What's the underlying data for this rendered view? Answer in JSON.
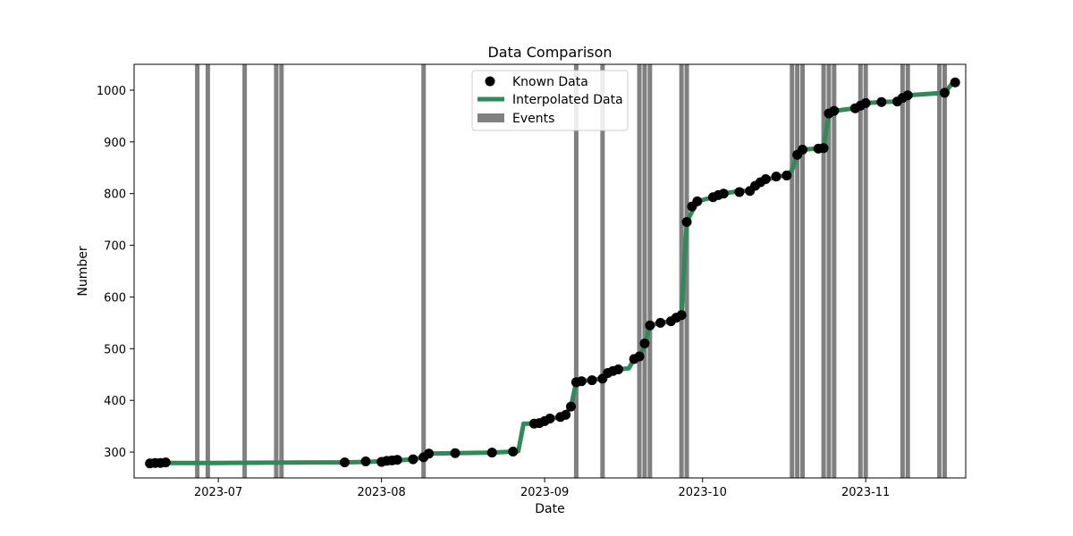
{
  "chart_data": {
    "type": "line",
    "title": "Data Comparison",
    "xlabel": "Date",
    "ylabel": "Number",
    "xlim": [
      "2023-06-15",
      "2023-11-20"
    ],
    "ylim": [
      250,
      1050
    ],
    "x_ticks": [
      "2023-07-01",
      "2023-08-01",
      "2023-09-01",
      "2023-10-01",
      "2023-11-01"
    ],
    "x_tick_labels": [
      "2023-07",
      "2023-08",
      "2023-09",
      "2023-10",
      "2023-11"
    ],
    "y_ticks": [
      300,
      400,
      500,
      600,
      700,
      800,
      900,
      1000
    ],
    "grid": false,
    "legend_position": "top-center",
    "series": [
      {
        "name": "Known Data",
        "kind": "scatter",
        "color": "#000000",
        "points": [
          [
            "2023-06-18",
            278
          ],
          [
            "2023-06-19",
            279
          ],
          [
            "2023-06-20",
            279
          ],
          [
            "2023-06-21",
            280
          ],
          [
            "2023-07-25",
            280
          ],
          [
            "2023-07-29",
            282
          ],
          [
            "2023-08-01",
            281
          ],
          [
            "2023-08-02",
            283
          ],
          [
            "2023-08-03",
            284
          ],
          [
            "2023-08-04",
            285
          ],
          [
            "2023-08-07",
            286
          ],
          [
            "2023-08-09",
            290
          ],
          [
            "2023-08-10",
            297
          ],
          [
            "2023-08-15",
            298
          ],
          [
            "2023-08-22",
            299
          ],
          [
            "2023-08-26",
            301
          ],
          [
            "2023-08-30",
            355
          ],
          [
            "2023-08-31",
            356
          ],
          [
            "2023-09-01",
            360
          ],
          [
            "2023-09-02",
            365
          ],
          [
            "2023-09-04",
            368
          ],
          [
            "2023-09-05",
            372
          ],
          [
            "2023-09-06",
            388
          ],
          [
            "2023-09-07",
            435
          ],
          [
            "2023-09-08",
            437
          ],
          [
            "2023-09-10",
            439
          ],
          [
            "2023-09-12",
            442
          ],
          [
            "2023-09-13",
            453
          ],
          [
            "2023-09-14",
            457
          ],
          [
            "2023-09-15",
            460
          ],
          [
            "2023-09-18",
            480
          ],
          [
            "2023-09-19",
            485
          ],
          [
            "2023-09-20",
            510
          ],
          [
            "2023-09-21",
            545
          ],
          [
            "2023-09-23",
            550
          ],
          [
            "2023-09-25",
            553
          ],
          [
            "2023-09-26",
            560
          ],
          [
            "2023-09-27",
            565
          ],
          [
            "2023-09-28",
            745
          ],
          [
            "2023-09-29",
            775
          ],
          [
            "2023-09-30",
            785
          ],
          [
            "2023-10-03",
            793
          ],
          [
            "2023-10-04",
            797
          ],
          [
            "2023-10-05",
            800
          ],
          [
            "2023-10-08",
            803
          ],
          [
            "2023-10-10",
            805
          ],
          [
            "2023-10-11",
            815
          ],
          [
            "2023-10-12",
            822
          ],
          [
            "2023-10-13",
            828
          ],
          [
            "2023-10-15",
            833
          ],
          [
            "2023-10-17",
            835
          ],
          [
            "2023-10-19",
            875
          ],
          [
            "2023-10-20",
            885
          ],
          [
            "2023-10-23",
            887
          ],
          [
            "2023-10-24",
            888
          ],
          [
            "2023-10-25",
            955
          ],
          [
            "2023-10-26",
            960
          ],
          [
            "2023-10-30",
            965
          ],
          [
            "2023-10-31",
            970
          ],
          [
            "2023-11-01",
            975
          ],
          [
            "2023-11-04",
            977
          ],
          [
            "2023-11-07",
            978
          ],
          [
            "2023-11-08",
            985
          ],
          [
            "2023-11-09",
            990
          ],
          [
            "2023-11-16",
            995
          ],
          [
            "2023-11-18",
            1015
          ]
        ]
      },
      {
        "name": "Interpolated Data",
        "kind": "line",
        "color": "#2e8b57",
        "points": [
          [
            "2023-06-18",
            278
          ],
          [
            "2023-06-21",
            279
          ],
          [
            "2023-07-01",
            279
          ],
          [
            "2023-07-20",
            280
          ],
          [
            "2023-07-25",
            280
          ],
          [
            "2023-07-29",
            281
          ],
          [
            "2023-08-01",
            282
          ],
          [
            "2023-08-04",
            284
          ],
          [
            "2023-08-07",
            286
          ],
          [
            "2023-08-09",
            290
          ],
          [
            "2023-08-10",
            297
          ],
          [
            "2023-08-15",
            298
          ],
          [
            "2023-08-22",
            299
          ],
          [
            "2023-08-26",
            301
          ],
          [
            "2023-08-27",
            302
          ],
          [
            "2023-08-28",
            355
          ],
          [
            "2023-08-30",
            355
          ],
          [
            "2023-09-01",
            362
          ],
          [
            "2023-09-04",
            368
          ],
          [
            "2023-09-05",
            375
          ],
          [
            "2023-09-06",
            388
          ],
          [
            "2023-09-07",
            435
          ],
          [
            "2023-09-10",
            440
          ],
          [
            "2023-09-12",
            442
          ],
          [
            "2023-09-13",
            453
          ],
          [
            "2023-09-15",
            460
          ],
          [
            "2023-09-17",
            462
          ],
          [
            "2023-09-18",
            480
          ],
          [
            "2023-09-19",
            485
          ],
          [
            "2023-09-20",
            505
          ],
          [
            "2023-09-21",
            545
          ],
          [
            "2023-09-23",
            550
          ],
          [
            "2023-09-25",
            553
          ],
          [
            "2023-09-27",
            565
          ],
          [
            "2023-09-28",
            745
          ],
          [
            "2023-09-30",
            785
          ],
          [
            "2023-10-03",
            793
          ],
          [
            "2023-10-05",
            800
          ],
          [
            "2023-10-08",
            805
          ],
          [
            "2023-10-10",
            805
          ],
          [
            "2023-10-12",
            822
          ],
          [
            "2023-10-15",
            833
          ],
          [
            "2023-10-17",
            835
          ],
          [
            "2023-10-18",
            845
          ],
          [
            "2023-10-19",
            875
          ],
          [
            "2023-10-20",
            885
          ],
          [
            "2023-10-24",
            888
          ],
          [
            "2023-10-25",
            955
          ],
          [
            "2023-10-26",
            960
          ],
          [
            "2023-10-30",
            965
          ],
          [
            "2023-11-01",
            975
          ],
          [
            "2023-11-04",
            977
          ],
          [
            "2023-11-07",
            978
          ],
          [
            "2023-11-09",
            990
          ],
          [
            "2023-11-16",
            995
          ],
          [
            "2023-11-18",
            1020
          ]
        ]
      },
      {
        "name": "Events",
        "kind": "vline",
        "color": "#808080",
        "dates": [
          "2023-06-27",
          "2023-06-29",
          "2023-07-06",
          "2023-07-12",
          "2023-07-13",
          "2023-08-09",
          "2023-09-07",
          "2023-09-12",
          "2023-09-19",
          "2023-09-20",
          "2023-09-21",
          "2023-09-27",
          "2023-09-28",
          "2023-10-18",
          "2023-10-19",
          "2023-10-20",
          "2023-10-24",
          "2023-10-25",
          "2023-10-26",
          "2023-10-31",
          "2023-11-01",
          "2023-11-08",
          "2023-11-09",
          "2023-11-15",
          "2023-11-16"
        ]
      }
    ]
  }
}
